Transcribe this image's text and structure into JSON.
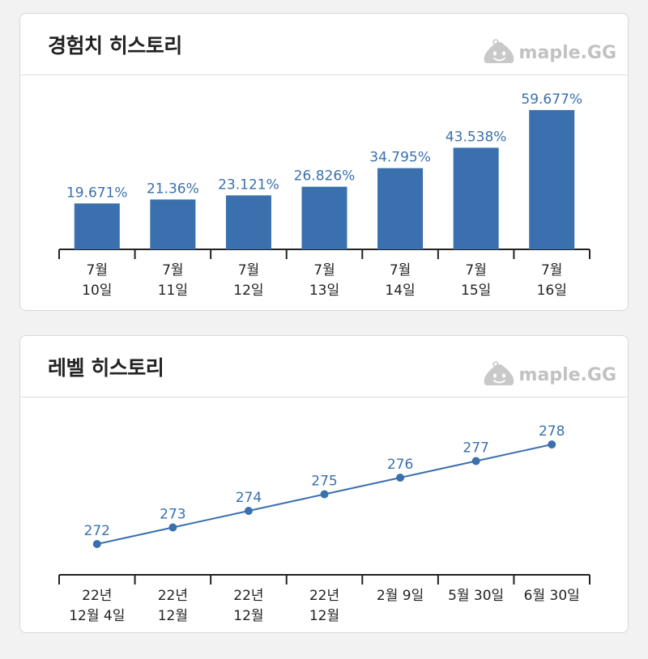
{
  "exp_card": {
    "title": "경험치 히스토리",
    "brand": "maple.GG",
    "brand_icon": "slime-mascot-icon"
  },
  "level_card": {
    "title": "레벨 히스토리",
    "brand": "maple.GG",
    "brand_icon": "slime-mascot-icon"
  },
  "colors": {
    "accent": "#3a70ad",
    "card_bg": "#ffffff",
    "page_bg": "#f2f2f2",
    "brand_gray": "#c2c2c2"
  },
  "chart_data": [
    {
      "type": "bar",
      "categories": [
        [
          "7월",
          "10일"
        ],
        [
          "7월",
          "11일"
        ],
        [
          "7월",
          "12일"
        ],
        [
          "7월",
          "13일"
        ],
        [
          "7월",
          "14일"
        ],
        [
          "7월",
          "15일"
        ],
        [
          "7월",
          "16일"
        ]
      ],
      "values": [
        19.671,
        21.36,
        23.121,
        26.826,
        34.795,
        43.538,
        59.677
      ],
      "data_labels": [
        "19.671%",
        "21.36%",
        "23.121%",
        "26.826%",
        "34.795%",
        "43.538%",
        "59.677%"
      ],
      "ylim": [
        0,
        60
      ],
      "title": "경험치 히스토리",
      "grid": false,
      "legend": "none"
    },
    {
      "type": "line",
      "categories": [
        [
          "22년",
          "12월 4일"
        ],
        [
          "22년",
          "12월"
        ],
        [
          "22년",
          "12월"
        ],
        [
          "22년",
          "12월"
        ],
        [
          "2월 9일"
        ],
        [
          "5월 30일"
        ],
        [
          "6월 30일"
        ]
      ],
      "values": [
        272,
        273,
        274,
        275,
        276,
        277,
        278
      ],
      "data_labels": [
        "272",
        "273",
        "274",
        "275",
        "276",
        "277",
        "278"
      ],
      "ylim": [
        272,
        278
      ],
      "title": "레벨 히스토리",
      "grid": false,
      "legend": "none"
    }
  ]
}
